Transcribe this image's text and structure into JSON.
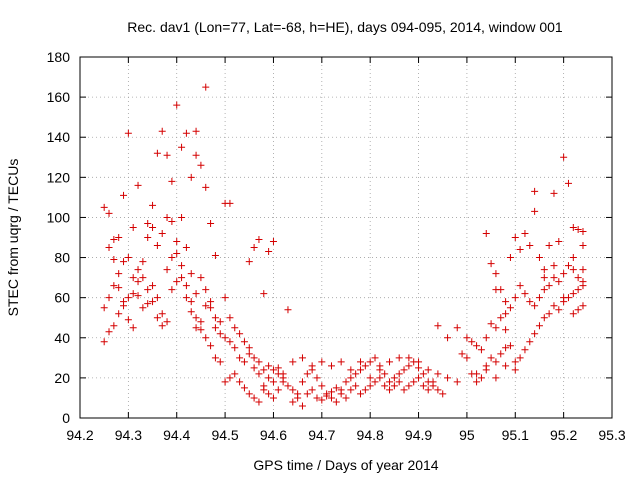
{
  "chart_data": {
    "type": "scatter",
    "title": "Rec. dav1 (Lon=77, Lat=-68, h=HE), days 094-095, 2014, window 001",
    "xlabel": "GPS time / Days of year 2014",
    "ylabel": "STEC from uqrg / TECUs",
    "xlim": [
      94.2,
      95.3
    ],
    "ylim": [
      0,
      180
    ],
    "xticks": [
      "94.2",
      "94.3",
      "94.4",
      "94.5",
      "94.6",
      "94.7",
      "94.8",
      "94.9",
      "95",
      "95.1",
      "95.2",
      "95.3"
    ],
    "yticks": [
      "0",
      "20",
      "40",
      "60",
      "80",
      "100",
      "120",
      "140",
      "160",
      "180"
    ],
    "grid": true,
    "marker": "plus",
    "color": "#d40000",
    "points": [
      [
        94.25,
        105
      ],
      [
        94.26,
        102
      ],
      [
        94.27,
        89
      ],
      [
        94.28,
        90
      ],
      [
        94.29,
        111
      ],
      [
        94.3,
        142
      ],
      [
        94.31,
        95
      ],
      [
        94.32,
        116
      ],
      [
        94.34,
        97
      ],
      [
        94.35,
        106
      ],
      [
        94.36,
        132
      ],
      [
        94.37,
        143
      ],
      [
        94.38,
        131
      ],
      [
        94.39,
        118
      ],
      [
        94.4,
        156
      ],
      [
        94.41,
        135
      ],
      [
        94.42,
        142
      ],
      [
        94.43,
        120
      ],
      [
        94.44,
        143
      ],
      [
        94.44,
        131
      ],
      [
        94.45,
        126
      ],
      [
        94.46,
        165
      ],
      [
        94.46,
        115
      ],
      [
        94.47,
        97
      ],
      [
        94.48,
        81
      ],
      [
        94.5,
        107
      ],
      [
        94.51,
        107
      ],
      [
        94.55,
        78
      ],
      [
        94.56,
        85
      ],
      [
        94.57,
        89
      ],
      [
        94.6,
        88
      ],
      [
        94.59,
        83
      ],
      [
        94.25,
        38
      ],
      [
        94.26,
        43
      ],
      [
        94.27,
        46
      ],
      [
        94.28,
        52
      ],
      [
        94.29,
        58
      ],
      [
        94.3,
        60
      ],
      [
        94.31,
        62
      ],
      [
        94.32,
        61
      ],
      [
        94.33,
        55
      ],
      [
        94.34,
        57
      ],
      [
        94.35,
        66
      ],
      [
        94.36,
        60
      ],
      [
        94.37,
        52
      ],
      [
        94.38,
        48
      ],
      [
        94.39,
        64
      ],
      [
        94.4,
        68
      ],
      [
        94.41,
        70
      ],
      [
        94.42,
        60
      ],
      [
        94.43,
        53
      ],
      [
        94.44,
        45
      ],
      [
        94.45,
        48
      ],
      [
        94.46,
        56
      ],
      [
        94.47,
        58
      ],
      [
        94.48,
        45
      ],
      [
        94.49,
        42
      ],
      [
        94.5,
        40
      ],
      [
        94.51,
        38
      ],
      [
        94.52,
        35
      ],
      [
        94.53,
        30
      ],
      [
        94.54,
        28
      ],
      [
        94.55,
        32
      ],
      [
        94.56,
        25
      ],
      [
        94.57,
        22
      ],
      [
        94.58,
        16
      ],
      [
        94.59,
        12
      ],
      [
        94.6,
        10
      ],
      [
        94.61,
        14
      ],
      [
        94.62,
        18
      ],
      [
        94.25,
        55
      ],
      [
        94.26,
        60
      ],
      [
        94.27,
        66
      ],
      [
        94.28,
        72
      ],
      [
        94.29,
        78
      ],
      [
        94.3,
        80
      ],
      [
        94.31,
        70
      ],
      [
        94.32,
        74
      ],
      [
        94.33,
        78
      ],
      [
        94.34,
        90
      ],
      [
        94.35,
        95
      ],
      [
        94.36,
        86
      ],
      [
        94.37,
        92
      ],
      [
        94.38,
        100
      ],
      [
        94.39,
        98
      ],
      [
        94.4,
        88
      ],
      [
        94.41,
        100
      ],
      [
        94.42,
        85
      ],
      [
        94.43,
        72
      ],
      [
        94.44,
        62
      ],
      [
        94.45,
        70
      ],
      [
        94.46,
        64
      ],
      [
        94.47,
        55
      ],
      [
        94.48,
        50
      ],
      [
        94.49,
        48
      ],
      [
        94.5,
        60
      ],
      [
        94.51,
        50
      ],
      [
        94.52,
        45
      ],
      [
        94.53,
        42
      ],
      [
        94.54,
        38
      ],
      [
        94.55,
        35
      ],
      [
        94.56,
        30
      ],
      [
        94.57,
        28
      ],
      [
        94.58,
        24
      ],
      [
        94.59,
        20
      ],
      [
        94.6,
        18
      ],
      [
        94.61,
        25
      ],
      [
        94.62,
        22
      ],
      [
        94.63,
        54
      ],
      [
        94.58,
        62
      ],
      [
        94.26,
        85
      ],
      [
        94.27,
        79
      ],
      [
        94.28,
        65
      ],
      [
        94.29,
        56
      ],
      [
        94.3,
        49
      ],
      [
        94.31,
        45
      ],
      [
        94.32,
        68
      ],
      [
        94.33,
        70
      ],
      [
        94.34,
        64
      ],
      [
        94.35,
        58
      ],
      [
        94.36,
        50
      ],
      [
        94.37,
        46
      ],
      [
        94.38,
        74
      ],
      [
        94.39,
        80
      ],
      [
        94.4,
        82
      ],
      [
        94.41,
        76
      ],
      [
        94.42,
        66
      ],
      [
        94.43,
        58
      ],
      [
        94.44,
        50
      ],
      [
        94.45,
        44
      ],
      [
        94.46,
        40
      ],
      [
        94.47,
        36
      ],
      [
        94.48,
        30
      ],
      [
        94.49,
        28
      ],
      [
        94.5,
        18
      ],
      [
        94.51,
        20
      ],
      [
        94.52,
        22
      ],
      [
        94.53,
        18
      ],
      [
        94.54,
        15
      ],
      [
        94.55,
        12
      ],
      [
        94.56,
        10
      ],
      [
        94.57,
        8
      ],
      [
        94.58,
        14
      ],
      [
        94.59,
        26
      ],
      [
        94.6,
        24
      ],
      [
        94.61,
        22
      ],
      [
        94.62,
        20
      ],
      [
        94.63,
        16
      ],
      [
        94.64,
        14
      ],
      [
        94.65,
        12
      ],
      [
        94.66,
        18
      ],
      [
        94.67,
        22
      ],
      [
        94.68,
        24
      ],
      [
        94.69,
        20
      ],
      [
        94.7,
        16
      ],
      [
        94.71,
        12
      ],
      [
        94.72,
        10
      ],
      [
        94.73,
        8
      ],
      [
        94.74,
        14
      ],
      [
        94.75,
        18
      ],
      [
        94.76,
        20
      ],
      [
        94.77,
        22
      ],
      [
        94.78,
        24
      ],
      [
        94.79,
        26
      ],
      [
        94.8,
        28
      ],
      [
        94.81,
        30
      ],
      [
        94.82,
        26
      ],
      [
        94.83,
        22
      ],
      [
        94.84,
        18
      ],
      [
        94.85,
        20
      ],
      [
        94.86,
        22
      ],
      [
        94.87,
        24
      ],
      [
        94.88,
        26
      ],
      [
        94.89,
        28
      ],
      [
        94.9,
        25
      ],
      [
        94.91,
        22
      ],
      [
        94.92,
        18
      ],
      [
        94.93,
        16
      ],
      [
        94.94,
        14
      ],
      [
        94.95,
        12
      ],
      [
        94.64,
        8
      ],
      [
        94.65,
        10
      ],
      [
        94.66,
        6
      ],
      [
        94.67,
        12
      ],
      [
        94.68,
        14
      ],
      [
        94.69,
        10
      ],
      [
        94.7,
        9
      ],
      [
        94.71,
        11
      ],
      [
        94.72,
        13
      ],
      [
        94.73,
        15
      ],
      [
        94.74,
        12
      ],
      [
        94.75,
        10
      ],
      [
        94.76,
        14
      ],
      [
        94.77,
        16
      ],
      [
        94.78,
        12
      ],
      [
        94.79,
        14
      ],
      [
        94.8,
        16
      ],
      [
        94.81,
        18
      ],
      [
        94.82,
        20
      ],
      [
        94.83,
        16
      ],
      [
        94.84,
        14
      ],
      [
        94.85,
        16
      ],
      [
        94.86,
        18
      ],
      [
        94.87,
        14
      ],
      [
        94.88,
        16
      ],
      [
        94.89,
        18
      ],
      [
        94.9,
        20
      ],
      [
        94.91,
        16
      ],
      [
        94.92,
        14
      ],
      [
        94.93,
        18
      ],
      [
        94.64,
        28
      ],
      [
        94.66,
        30
      ],
      [
        94.68,
        26
      ],
      [
        94.7,
        28
      ],
      [
        94.72,
        26
      ],
      [
        94.74,
        28
      ],
      [
        94.76,
        24
      ],
      [
        94.78,
        28
      ],
      [
        94.8,
        20
      ],
      [
        94.82,
        24
      ],
      [
        94.84,
        28
      ],
      [
        94.86,
        30
      ],
      [
        94.88,
        30
      ],
      [
        94.9,
        28
      ],
      [
        94.92,
        24
      ],
      [
        94.94,
        22
      ],
      [
        94.96,
        20
      ],
      [
        94.98,
        18
      ],
      [
        94.94,
        46
      ],
      [
        94.96,
        40
      ],
      [
        94.98,
        45
      ],
      [
        94.99,
        32
      ],
      [
        95.0,
        30
      ],
      [
        95.01,
        22
      ],
      [
        95.02,
        18
      ],
      [
        95.03,
        20
      ],
      [
        95.04,
        26
      ],
      [
        95.05,
        30
      ],
      [
        95.06,
        28
      ],
      [
        95.07,
        32
      ],
      [
        95.08,
        35
      ],
      [
        95.09,
        36
      ],
      [
        95.1,
        28
      ],
      [
        95.11,
        30
      ],
      [
        95.12,
        34
      ],
      [
        95.13,
        38
      ],
      [
        95.14,
        42
      ],
      [
        95.15,
        46
      ],
      [
        95.16,
        50
      ],
      [
        95.17,
        52
      ],
      [
        95.18,
        56
      ],
      [
        95.19,
        54
      ],
      [
        95.2,
        58
      ],
      [
        95.21,
        60
      ],
      [
        95.22,
        62
      ],
      [
        95.23,
        64
      ],
      [
        95.24,
        66
      ],
      [
        95.24,
        56
      ],
      [
        95.23,
        54
      ],
      [
        95.22,
        52
      ],
      [
        95.0,
        40
      ],
      [
        95.01,
        38
      ],
      [
        95.02,
        36
      ],
      [
        95.03,
        34
      ],
      [
        95.04,
        40
      ],
      [
        95.05,
        47
      ],
      [
        95.06,
        45
      ],
      [
        95.07,
        50
      ],
      [
        95.08,
        52
      ],
      [
        95.09,
        55
      ],
      [
        95.1,
        60
      ],
      [
        95.11,
        66
      ],
      [
        95.12,
        62
      ],
      [
        95.13,
        58
      ],
      [
        95.14,
        56
      ],
      [
        95.15,
        60
      ],
      [
        95.16,
        64
      ],
      [
        95.17,
        66
      ],
      [
        95.18,
        70
      ],
      [
        95.19,
        68
      ],
      [
        95.2,
        72
      ],
      [
        95.21,
        76
      ],
      [
        95.22,
        74
      ],
      [
        95.23,
        70
      ],
      [
        95.24,
        68
      ],
      [
        95.02,
        22
      ],
      [
        95.04,
        24
      ],
      [
        95.06,
        20
      ],
      [
        95.08,
        26
      ],
      [
        95.1,
        24
      ],
      [
        95.04,
        92
      ],
      [
        95.05,
        77
      ],
      [
        95.06,
        72
      ],
      [
        95.07,
        64
      ],
      [
        95.08,
        58
      ],
      [
        95.09,
        80
      ],
      [
        95.1,
        90
      ],
      [
        95.11,
        84
      ],
      [
        95.12,
        92
      ],
      [
        95.13,
        86
      ],
      [
        95.14,
        103
      ],
      [
        95.15,
        80
      ],
      [
        95.16,
        70
      ],
      [
        95.17,
        86
      ],
      [
        95.18,
        112
      ],
      [
        95.19,
        88
      ],
      [
        95.2,
        130
      ],
      [
        95.21,
        117
      ],
      [
        95.22,
        95
      ],
      [
        95.23,
        94
      ],
      [
        95.24,
        93
      ],
      [
        95.24,
        86
      ],
      [
        95.14,
        113
      ],
      [
        95.16,
        74
      ],
      [
        95.18,
        76
      ],
      [
        95.2,
        60
      ],
      [
        95.22,
        80
      ],
      [
        95.24,
        74
      ],
      [
        95.06,
        64
      ],
      [
        95.08,
        44
      ]
    ]
  }
}
